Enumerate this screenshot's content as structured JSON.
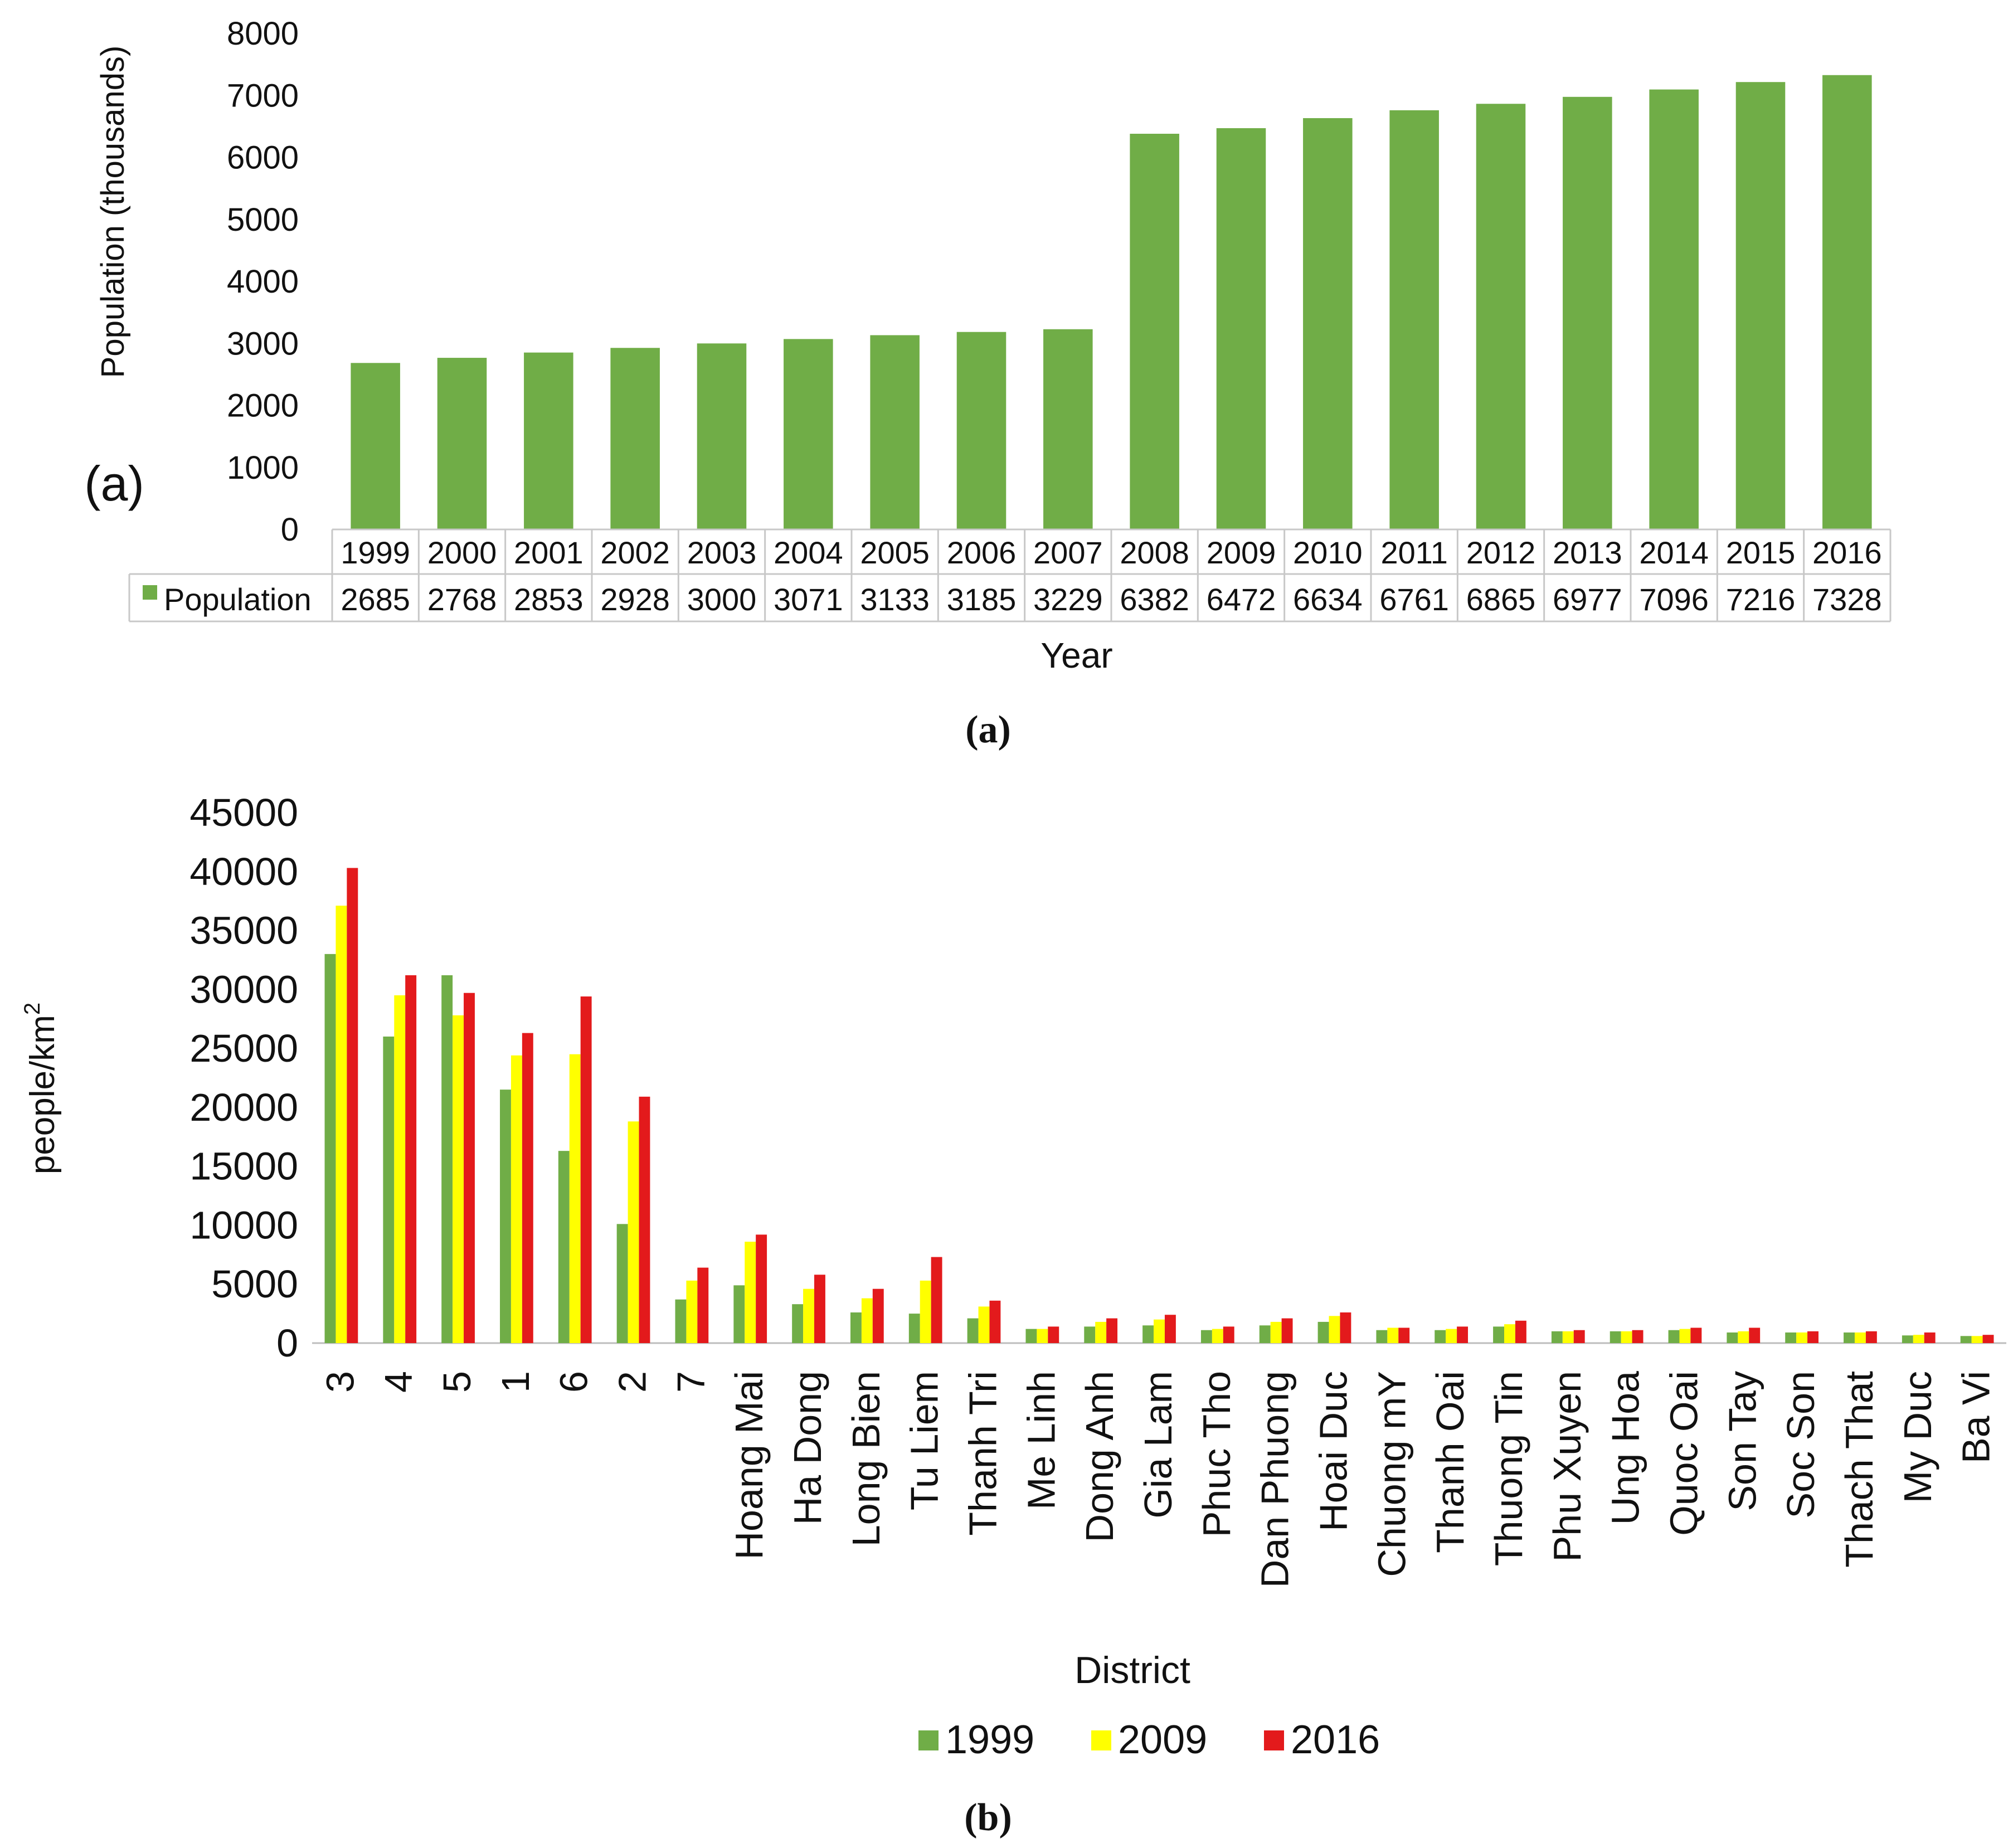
{
  "colors": {
    "green": "#70ad47",
    "yellow": "#ffff00",
    "red": "#e31a1c",
    "table_border": "#c8c8c8",
    "text": "#111111"
  },
  "chart_data": [
    {
      "type": "bar",
      "panel_label": "(a)",
      "caption": "(a)",
      "categories": [
        "1999",
        "2000",
        "2001",
        "2002",
        "2003",
        "2004",
        "2005",
        "2006",
        "2007",
        "2008",
        "2009",
        "2010",
        "2011",
        "2012",
        "2013",
        "2014",
        "2015",
        "2016"
      ],
      "series": [
        {
          "name": "Population",
          "values": [
            2685,
            2768,
            2853,
            2928,
            3000,
            3071,
            3133,
            3185,
            3229,
            6382,
            6472,
            6634,
            6761,
            6865,
            6977,
            7096,
            7216,
            7328
          ]
        }
      ],
      "ylim": [
        0,
        8000
      ],
      "yticks": [
        "0",
        "1000",
        "2000",
        "3000",
        "4000",
        "5000",
        "6000",
        "7000",
        "8000"
      ],
      "ylabel": "Population (thousands)",
      "xlabel": "Year",
      "grid": false,
      "data_table": true
    },
    {
      "type": "bar",
      "caption": "(b)",
      "categories": [
        "3",
        "4",
        "5",
        "1",
        "6",
        "2",
        "7",
        "Hoang Mai",
        "Ha Dong",
        "Long Bien",
        "Tu Liem",
        "Thanh Tri",
        "Me Linh",
        "Dong Anh",
        "Gia Lam",
        "Phuc Tho",
        "Dan Phuong",
        "Hoai Duc",
        "Chuong mY",
        "Thanh Oai",
        "Thuong Tin",
        "Phu Xuyen",
        "Ung Hoa",
        "Quoc Oai",
        "Son Tay",
        "Soc Son",
        "Thach That",
        "My Duc",
        "Ba Vi"
      ],
      "series": [
        {
          "name": "1999",
          "values": [
            33000,
            26000,
            31200,
            21500,
            16300,
            10100,
            3700,
            4900,
            3300,
            2600,
            2500,
            2100,
            1200,
            1400,
            1500,
            1100,
            1500,
            1800,
            1100,
            1100,
            1400,
            1000,
            1000,
            1100,
            900,
            900,
            900,
            650,
            600
          ]
        },
        {
          "name": "2009",
          "values": [
            37100,
            29500,
            27800,
            24400,
            24500,
            18800,
            5300,
            8600,
            4600,
            3800,
            5300,
            3100,
            1200,
            1800,
            2000,
            1200,
            1800,
            2300,
            1300,
            1200,
            1600,
            1000,
            1000,
            1200,
            1000,
            900,
            900,
            700,
            600
          ]
        },
        {
          "name": "2016",
          "values": [
            40300,
            31200,
            29700,
            26300,
            29400,
            20900,
            6400,
            9200,
            5800,
            4600,
            7300,
            3600,
            1400,
            2100,
            2400,
            1400,
            2100,
            2600,
            1300,
            1400,
            1900,
            1100,
            1100,
            1300,
            1300,
            1000,
            1000,
            900,
            700
          ]
        }
      ],
      "ylim": [
        0,
        45000
      ],
      "yticks": [
        "0",
        "5000",
        "10000",
        "15000",
        "20000",
        "25000",
        "30000",
        "35000",
        "40000",
        "45000"
      ],
      "ylabel_main": "people/km",
      "ylabel_sup": "2",
      "xlabel": "District",
      "legend_position": "bottom",
      "grid": false
    }
  ]
}
